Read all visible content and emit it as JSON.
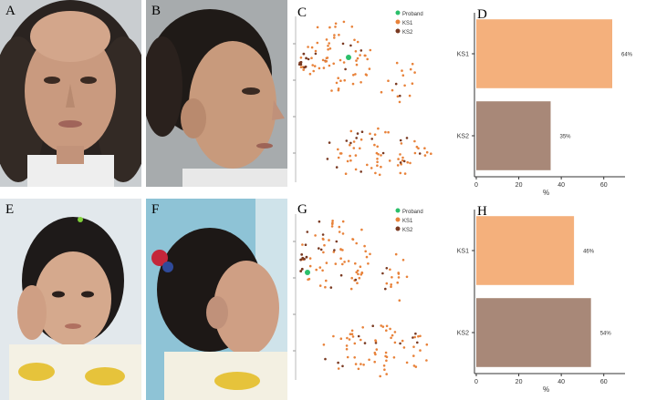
{
  "figure": {
    "panels": {
      "A": "A",
      "B": "B",
      "C": "C",
      "D": "D",
      "E": "E",
      "F": "F",
      "G": "G",
      "H": "H"
    },
    "colors": {
      "proband": "#2bbf6a",
      "ks1": "#e8823a",
      "ks2": "#7a3a22",
      "bar_ks1": "#f4b07c",
      "bar_ks2": "#a88878"
    },
    "legend_top": [
      "Proband",
      "KS1",
      "KS2"
    ],
    "legend_bottom": [
      "Proband",
      "KS1",
      "KS2"
    ]
  },
  "chart_data": [
    {
      "id": "D",
      "type": "bar",
      "orientation": "horizontal",
      "categories": [
        "KS1",
        "KS2"
      ],
      "values": [
        64,
        35
      ],
      "value_labels": [
        "64%",
        "35%"
      ],
      "xlabel": "%",
      "xlim": [
        0,
        70
      ],
      "xticks": [
        "0",
        "20",
        "40",
        "60"
      ]
    },
    {
      "id": "H",
      "type": "bar",
      "orientation": "horizontal",
      "categories": [
        "KS1",
        "KS2"
      ],
      "values": [
        46,
        54
      ],
      "value_labels": [
        "46%",
        "54%"
      ],
      "xlabel": "%",
      "xlim": [
        0,
        70
      ],
      "xticks": [
        "0",
        "20",
        "40",
        "60"
      ]
    }
  ]
}
